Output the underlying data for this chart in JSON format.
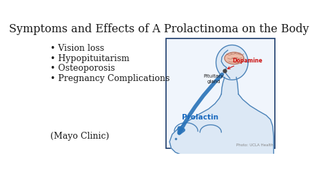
{
  "title": "Symptoms and Effects of A Prolactinoma on the Body",
  "title_fontsize": 11.5,
  "bullet_items": [
    "• Vision loss",
    "• Hypopituitarism",
    "• Osteoporosis",
    "• Pregnancy Complications"
  ],
  "footer": "(Mayo Clinic)",
  "photo_credit": "Photo: UCLA Health",
  "bullet_fontsize": 9,
  "footer_fontsize": 9,
  "bg_color": "#ffffff",
  "text_color": "#1a1a1a",
  "box_edge_color": "#1a3a6b",
  "body_fill": "#dce8f5",
  "body_line": "#4a82b8",
  "brain_fill": "#f0b8a0",
  "brain_line": "#b07060",
  "dopamine_color": "#cc1111",
  "prolactin_color": "#1a6abf",
  "arrow_blue": "#2872b8",
  "photo_color": "#888888"
}
